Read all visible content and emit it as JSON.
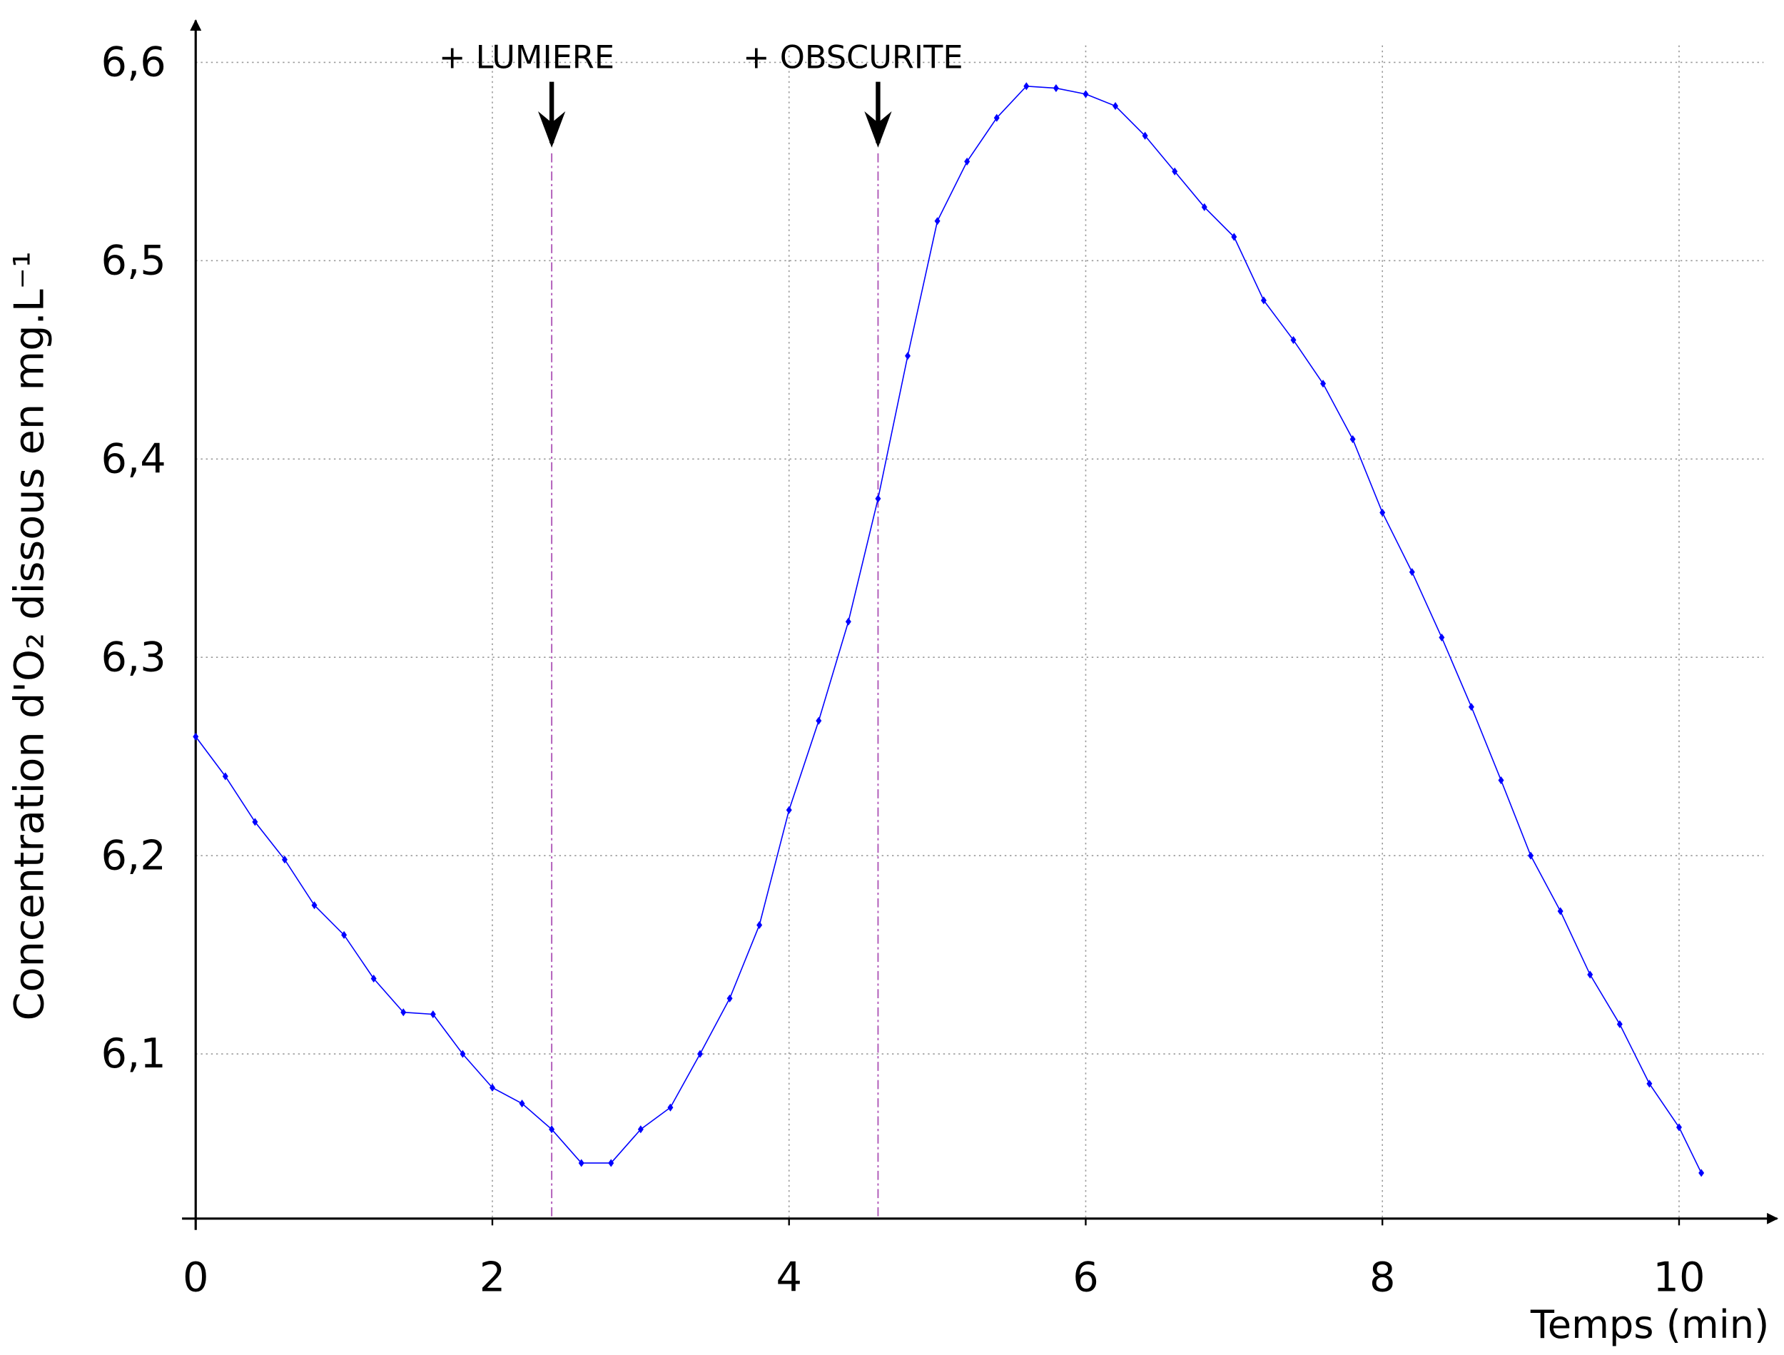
{
  "chart_data": {
    "type": "line",
    "xlabel": "Temps (min)",
    "ylabel": "Concentration d'O₂ dissous en mg.L⁻¹",
    "x": [
      0,
      0.2,
      0.4,
      0.6,
      0.8,
      1.0,
      1.2,
      1.4,
      1.6,
      1.8,
      2.0,
      2.2,
      2.4,
      2.6,
      2.8,
      3.0,
      3.2,
      3.4,
      3.6,
      3.8,
      4.0,
      4.2,
      4.4,
      4.6,
      4.8,
      5.0,
      5.2,
      5.4,
      5.6,
      5.8,
      6.0,
      6.2,
      6.4,
      6.6,
      6.8,
      7.0,
      7.2,
      7.4,
      7.6,
      7.8,
      8.0,
      8.2,
      8.4,
      8.6,
      8.8,
      9.0,
      9.2,
      9.4,
      9.6,
      9.8,
      10.0,
      10.15
    ],
    "values": [
      6.26,
      6.24,
      6.217,
      6.198,
      6.175,
      6.16,
      6.138,
      6.121,
      6.12,
      6.1,
      6.083,
      6.075,
      6.062,
      6.045,
      6.045,
      6.062,
      6.073,
      6.1,
      6.128,
      6.165,
      6.223,
      6.268,
      6.318,
      6.38,
      6.452,
      6.52,
      6.55,
      6.572,
      6.588,
      6.587,
      6.584,
      6.578,
      6.563,
      6.545,
      6.527,
      6.512,
      6.48,
      6.46,
      6.438,
      6.41,
      6.373,
      6.343,
      6.31,
      6.275,
      6.238,
      6.2,
      6.172,
      6.14,
      6.115,
      6.085,
      6.063,
      6.04
    ],
    "color": "#0000ff",
    "xlim": [
      0,
      10.6
    ],
    "xticks": [
      0,
      2,
      4,
      6,
      8,
      10
    ],
    "ylim": [
      6.017,
      6.62
    ],
    "yticks": [
      {
        "value": 6.1,
        "label": "6,1"
      },
      {
        "value": 6.2,
        "label": "6,2"
      },
      {
        "value": 6.3,
        "label": "6,3"
      },
      {
        "value": 6.4,
        "label": "6,4"
      },
      {
        "value": 6.5,
        "label": "6,5"
      },
      {
        "value": 6.6,
        "label": "6,6"
      }
    ],
    "grid": true,
    "annotations": [
      {
        "x": 2.4,
        "label": "+ LUMIERE"
      },
      {
        "x": 4.6,
        "label": "+ OBSCURITE"
      }
    ]
  }
}
